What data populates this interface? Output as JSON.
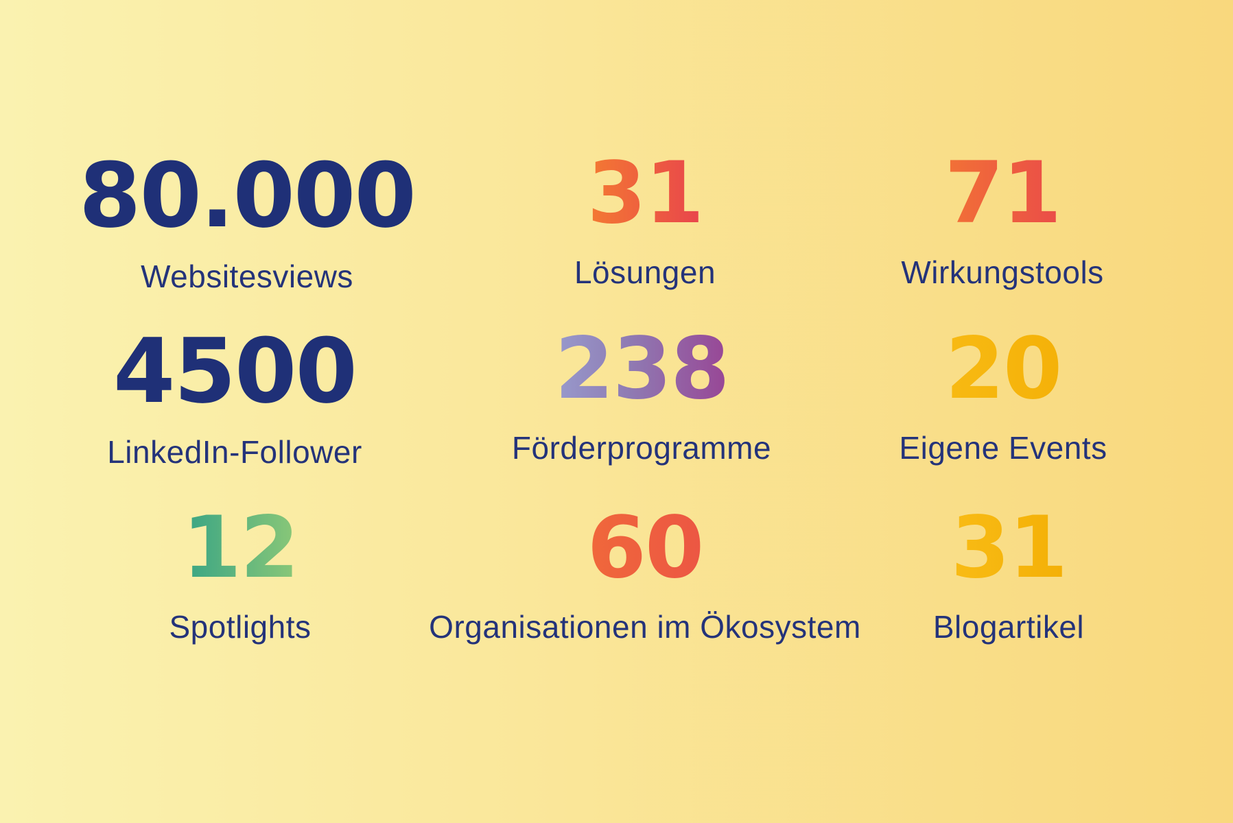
{
  "palette": {
    "bg-left": "#FAF2B0",
    "bg-right": "#F9D87D",
    "navy": "#1F3077",
    "label-blue": "#24337A",
    "or1": "#F5802F",
    "or2": "#E73E4F",
    "bp1": "#9DACDB",
    "bp2": "#8F7BB3",
    "bp3": "#9C2F88",
    "am1": "#F9BD17",
    "am2": "#F3AE04",
    "tg1": "#2EA086",
    "tg2": "#95CC76"
  },
  "stats": [
    {
      "value": "80.000",
      "label": "Websitesviews",
      "number_style": "navy"
    },
    {
      "value": "31",
      "label": "Lösungen",
      "number_style": "orange-red-gradient"
    },
    {
      "value": "71",
      "label": "Wirkungstools",
      "number_style": "orange-red-gradient"
    },
    {
      "value": "4500",
      "label": "LinkedIn-Follower",
      "number_style": "navy"
    },
    {
      "value": "238",
      "label": "Förderprogramme",
      "number_style": "blue-purple-gradient"
    },
    {
      "value": "20",
      "label": "Eigene Events",
      "number_style": "amber"
    },
    {
      "value": "12",
      "label": "Spotlights",
      "number_style": "teal-green-gradient"
    },
    {
      "value": "60",
      "label": "Organisationen im Ökosystem",
      "number_style": "orange-red-gradient"
    },
    {
      "value": "31",
      "label": "Blogartikel",
      "number_style": "amber"
    }
  ],
  "chart_data": {
    "type": "table",
    "title": "",
    "categories": [
      "Websitesviews",
      "Lösungen",
      "Wirkungstools",
      "LinkedIn-Follower",
      "Förderprogramme",
      "Eigene Events",
      "Spotlights",
      "Organisationen im Ökosystem",
      "Blogartikel"
    ],
    "values": [
      80000,
      31,
      71,
      4500,
      238,
      20,
      12,
      60,
      31
    ],
    "display_values": [
      "80.000",
      "31",
      "71",
      "4500",
      "238",
      "20",
      "12",
      "60",
      "31"
    ],
    "layout": "3x3-grid"
  }
}
